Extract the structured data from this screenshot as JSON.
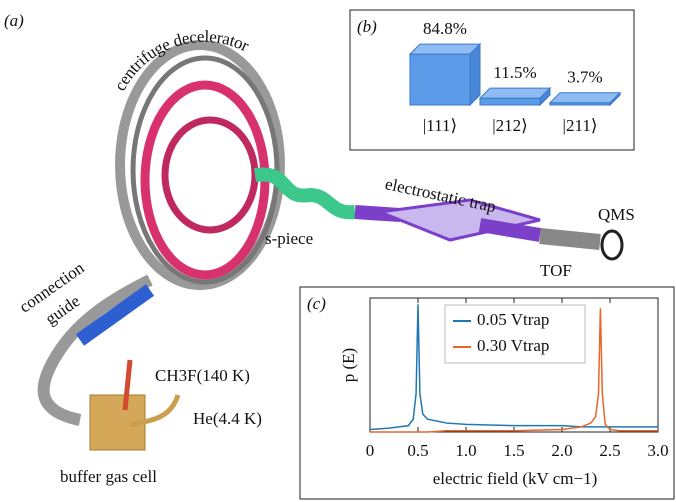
{
  "labels": {
    "panel_a": "(a)",
    "centrifuge": "centrifuge decelerator",
    "s_piece": "s-piece",
    "trap": "electrostatic trap",
    "qms": "QMS",
    "tof": "TOF",
    "connection": "connection",
    "guide": "guide",
    "ch3f": "CH3F(140 K)",
    "he": "He(4.4 K)",
    "buffer": "buffer gas cell"
  },
  "chart_data": [
    {
      "type": "bar",
      "label": "(b)",
      "categories": [
        "|111⟩",
        "|212⟩",
        "|211⟩"
      ],
      "values": [
        84.8,
        11.5,
        3.7
      ],
      "value_labels": [
        "84.8%",
        "11.5%",
        "3.7%"
      ],
      "color": "#5b9be8"
    },
    {
      "type": "line",
      "label": "(c)",
      "xlabel": "electric field (kV cm−1)",
      "ylabel": "p (E)",
      "x": [
        0,
        0.2,
        0.4,
        0.45,
        0.48,
        0.5,
        0.52,
        0.55,
        0.6,
        0.8,
        1.0,
        1.5,
        2.0,
        2.2,
        2.3,
        2.35,
        2.38,
        2.4,
        2.42,
        2.45,
        2.5,
        2.6,
        2.8,
        3.0
      ],
      "series": [
        {
          "name": "0.05 Vtrap",
          "color": "#1f77b4",
          "values": [
            0.02,
            0.03,
            0.05,
            0.1,
            0.3,
            1.0,
            0.3,
            0.14,
            0.1,
            0.07,
            0.06,
            0.05,
            0.05,
            0.04,
            0.04,
            0.04,
            0.04,
            0.04,
            0.04,
            0.04,
            0.04,
            0.04,
            0.04,
            0.04
          ]
        },
        {
          "name": "0.30 Vtrap",
          "color": "#e8662a",
          "values": [
            0,
            0,
            0,
            0,
            0,
            0,
            0,
            0,
            0,
            0.01,
            0.01,
            0.01,
            0.02,
            0.04,
            0.07,
            0.12,
            0.3,
            0.97,
            0.3,
            0.06,
            0.02,
            0.01,
            0.01,
            0.01
          ]
        }
      ],
      "xlim": [
        0,
        3
      ],
      "xticks": [
        0,
        0.5,
        {
          "value": 1,
          "label": "1.0"
        },
        1.5,
        {
          "value": 2,
          "label": "2.0"
        },
        2.5,
        {
          "value": 3,
          "label": "3.0"
        }
      ],
      "ylim": [
        0,
        1.05
      ],
      "legend": "upper center"
    }
  ]
}
